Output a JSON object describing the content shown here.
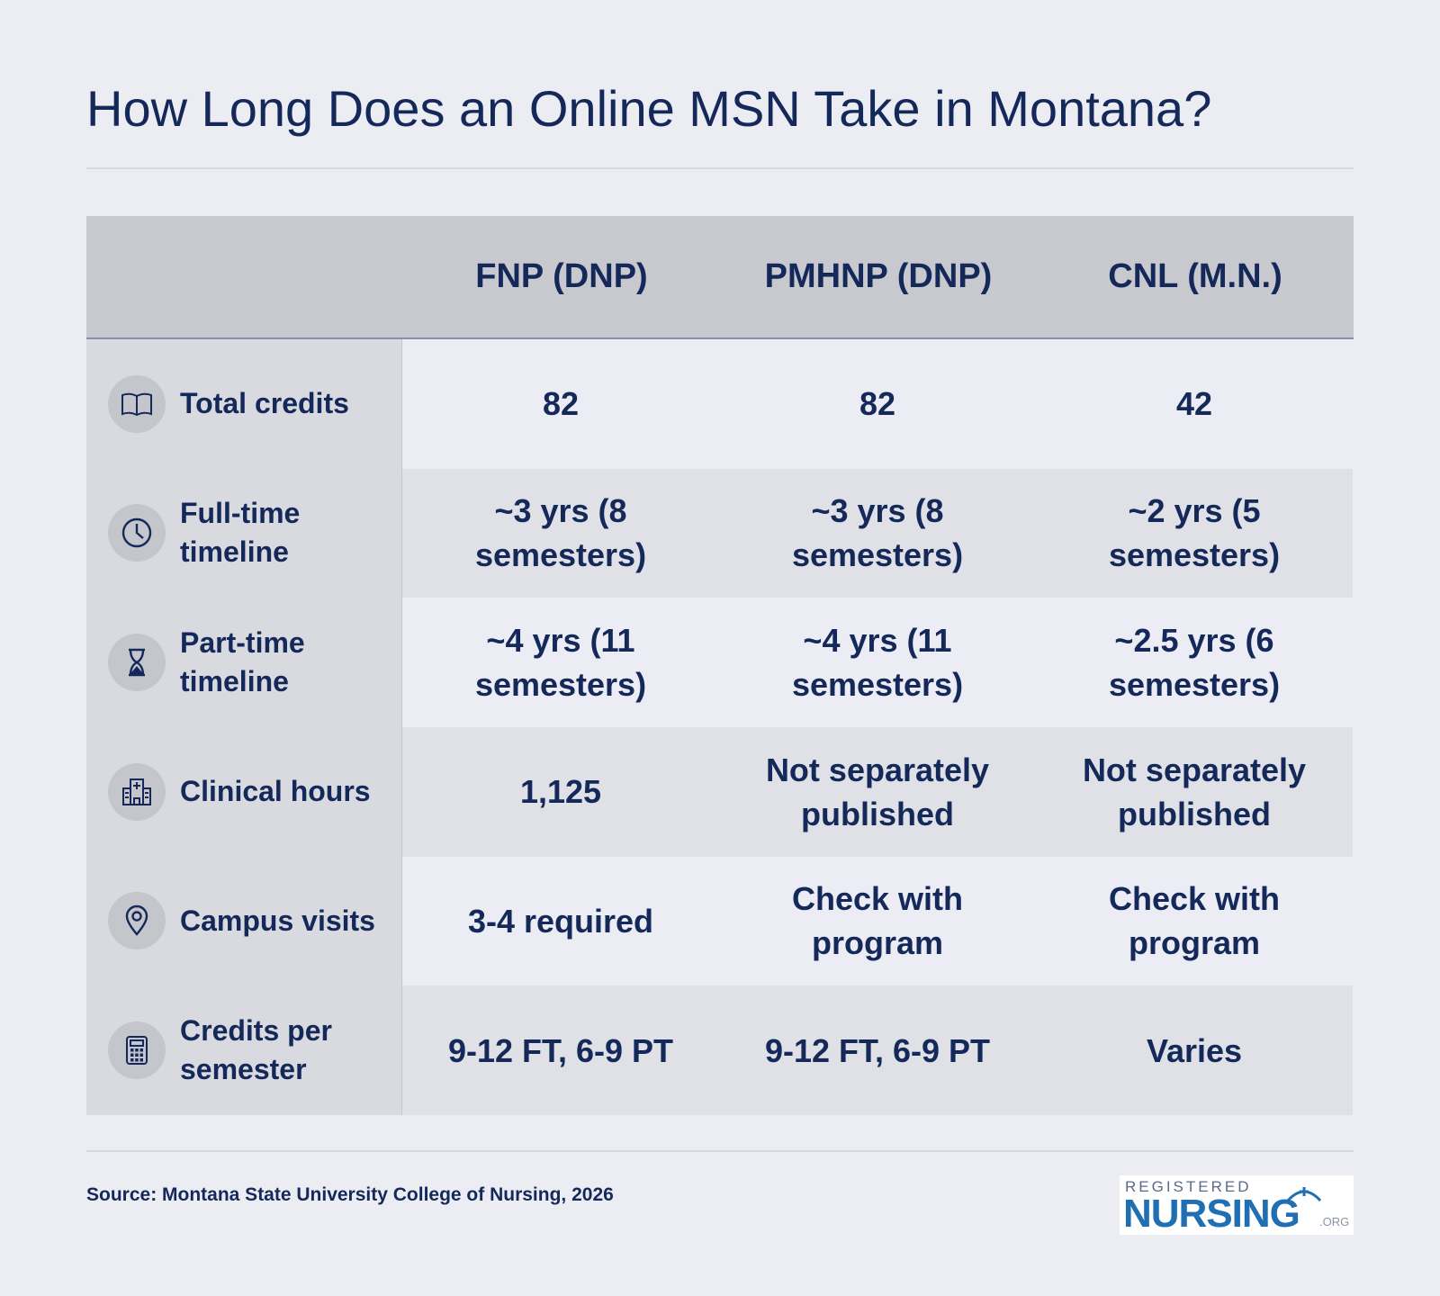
{
  "title": "How Long Does an Online MSN Take in Montana?",
  "columns": [
    "FNP (DNP)",
    "PMHNP (DNP)",
    "CNL (M.N.)"
  ],
  "rows": [
    {
      "label": "Total credits",
      "icon": "book-icon",
      "values": [
        "82",
        "82",
        "42"
      ]
    },
    {
      "label": "Full-time timeline",
      "icon": "clock-icon",
      "values": [
        "~3 yrs (8 semesters)",
        "~3 yrs (8 semesters)",
        "~2 yrs (5 semesters)"
      ]
    },
    {
      "label": "Part-time timeline",
      "icon": "hourglass-icon",
      "values": [
        "~4 yrs (11 semesters)",
        "~4 yrs (11 semesters)",
        "~2.5 yrs (6 semesters)"
      ]
    },
    {
      "label": "Clinical hours",
      "icon": "hospital-icon",
      "values": [
        "1,125",
        "Not separately published",
        "Not separately published"
      ]
    },
    {
      "label": "Campus visits",
      "icon": "location-pin-icon",
      "values": [
        "3-4 required",
        "Check with program",
        "Check with program"
      ]
    },
    {
      "label": "Credits per semester",
      "icon": "calculator-icon",
      "values": [
        "9-12 FT, 6-9 PT",
        "9-12 FT, 6-9 PT",
        "Varies"
      ]
    }
  ],
  "source": "Source: Montana State University College of Nursing, 2026",
  "logo": {
    "top": "REGISTERED",
    "main": "NURSING",
    "suffix": ".ORG"
  },
  "colors": {
    "text": "#14285a",
    "header_bg": "#c8c9ce",
    "label_bg": "#d9dae0",
    "logo_blue": "#1f6fb2"
  }
}
